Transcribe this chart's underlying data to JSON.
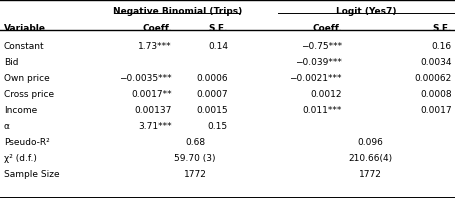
{
  "title_left": "Negative Binomial (Trips)",
  "title_right": "Logit (Yes7)",
  "rows": [
    [
      "Constant",
      "1.73***",
      "0.14",
      "−0.75***",
      "0.16"
    ],
    [
      "Bid",
      "",
      "",
      "−0.039***",
      "0.0034"
    ],
    [
      "Own price",
      "−0.0035***",
      "0.0006",
      "−0.0021***",
      "0.00062"
    ],
    [
      "Cross price",
      "0.0017**",
      "0.0007",
      "0.0012",
      "0.0008"
    ],
    [
      "Income",
      "0.00137",
      "0.0015",
      "0.011***",
      "0.0017"
    ],
    [
      "α",
      "3.71***",
      "0.15",
      "",
      ""
    ],
    [
      "Pseudo-R²",
      "0.68",
      "",
      "0.096",
      ""
    ],
    [
      "χ² (d.f.)",
      "59.70 (3)",
      "",
      "210.66(4)",
      ""
    ],
    [
      "Sample Size",
      "1772",
      "",
      "1772",
      ""
    ]
  ],
  "fig_width": 4.56,
  "fig_height": 2.03,
  "dpi": 100,
  "fs": 6.5
}
